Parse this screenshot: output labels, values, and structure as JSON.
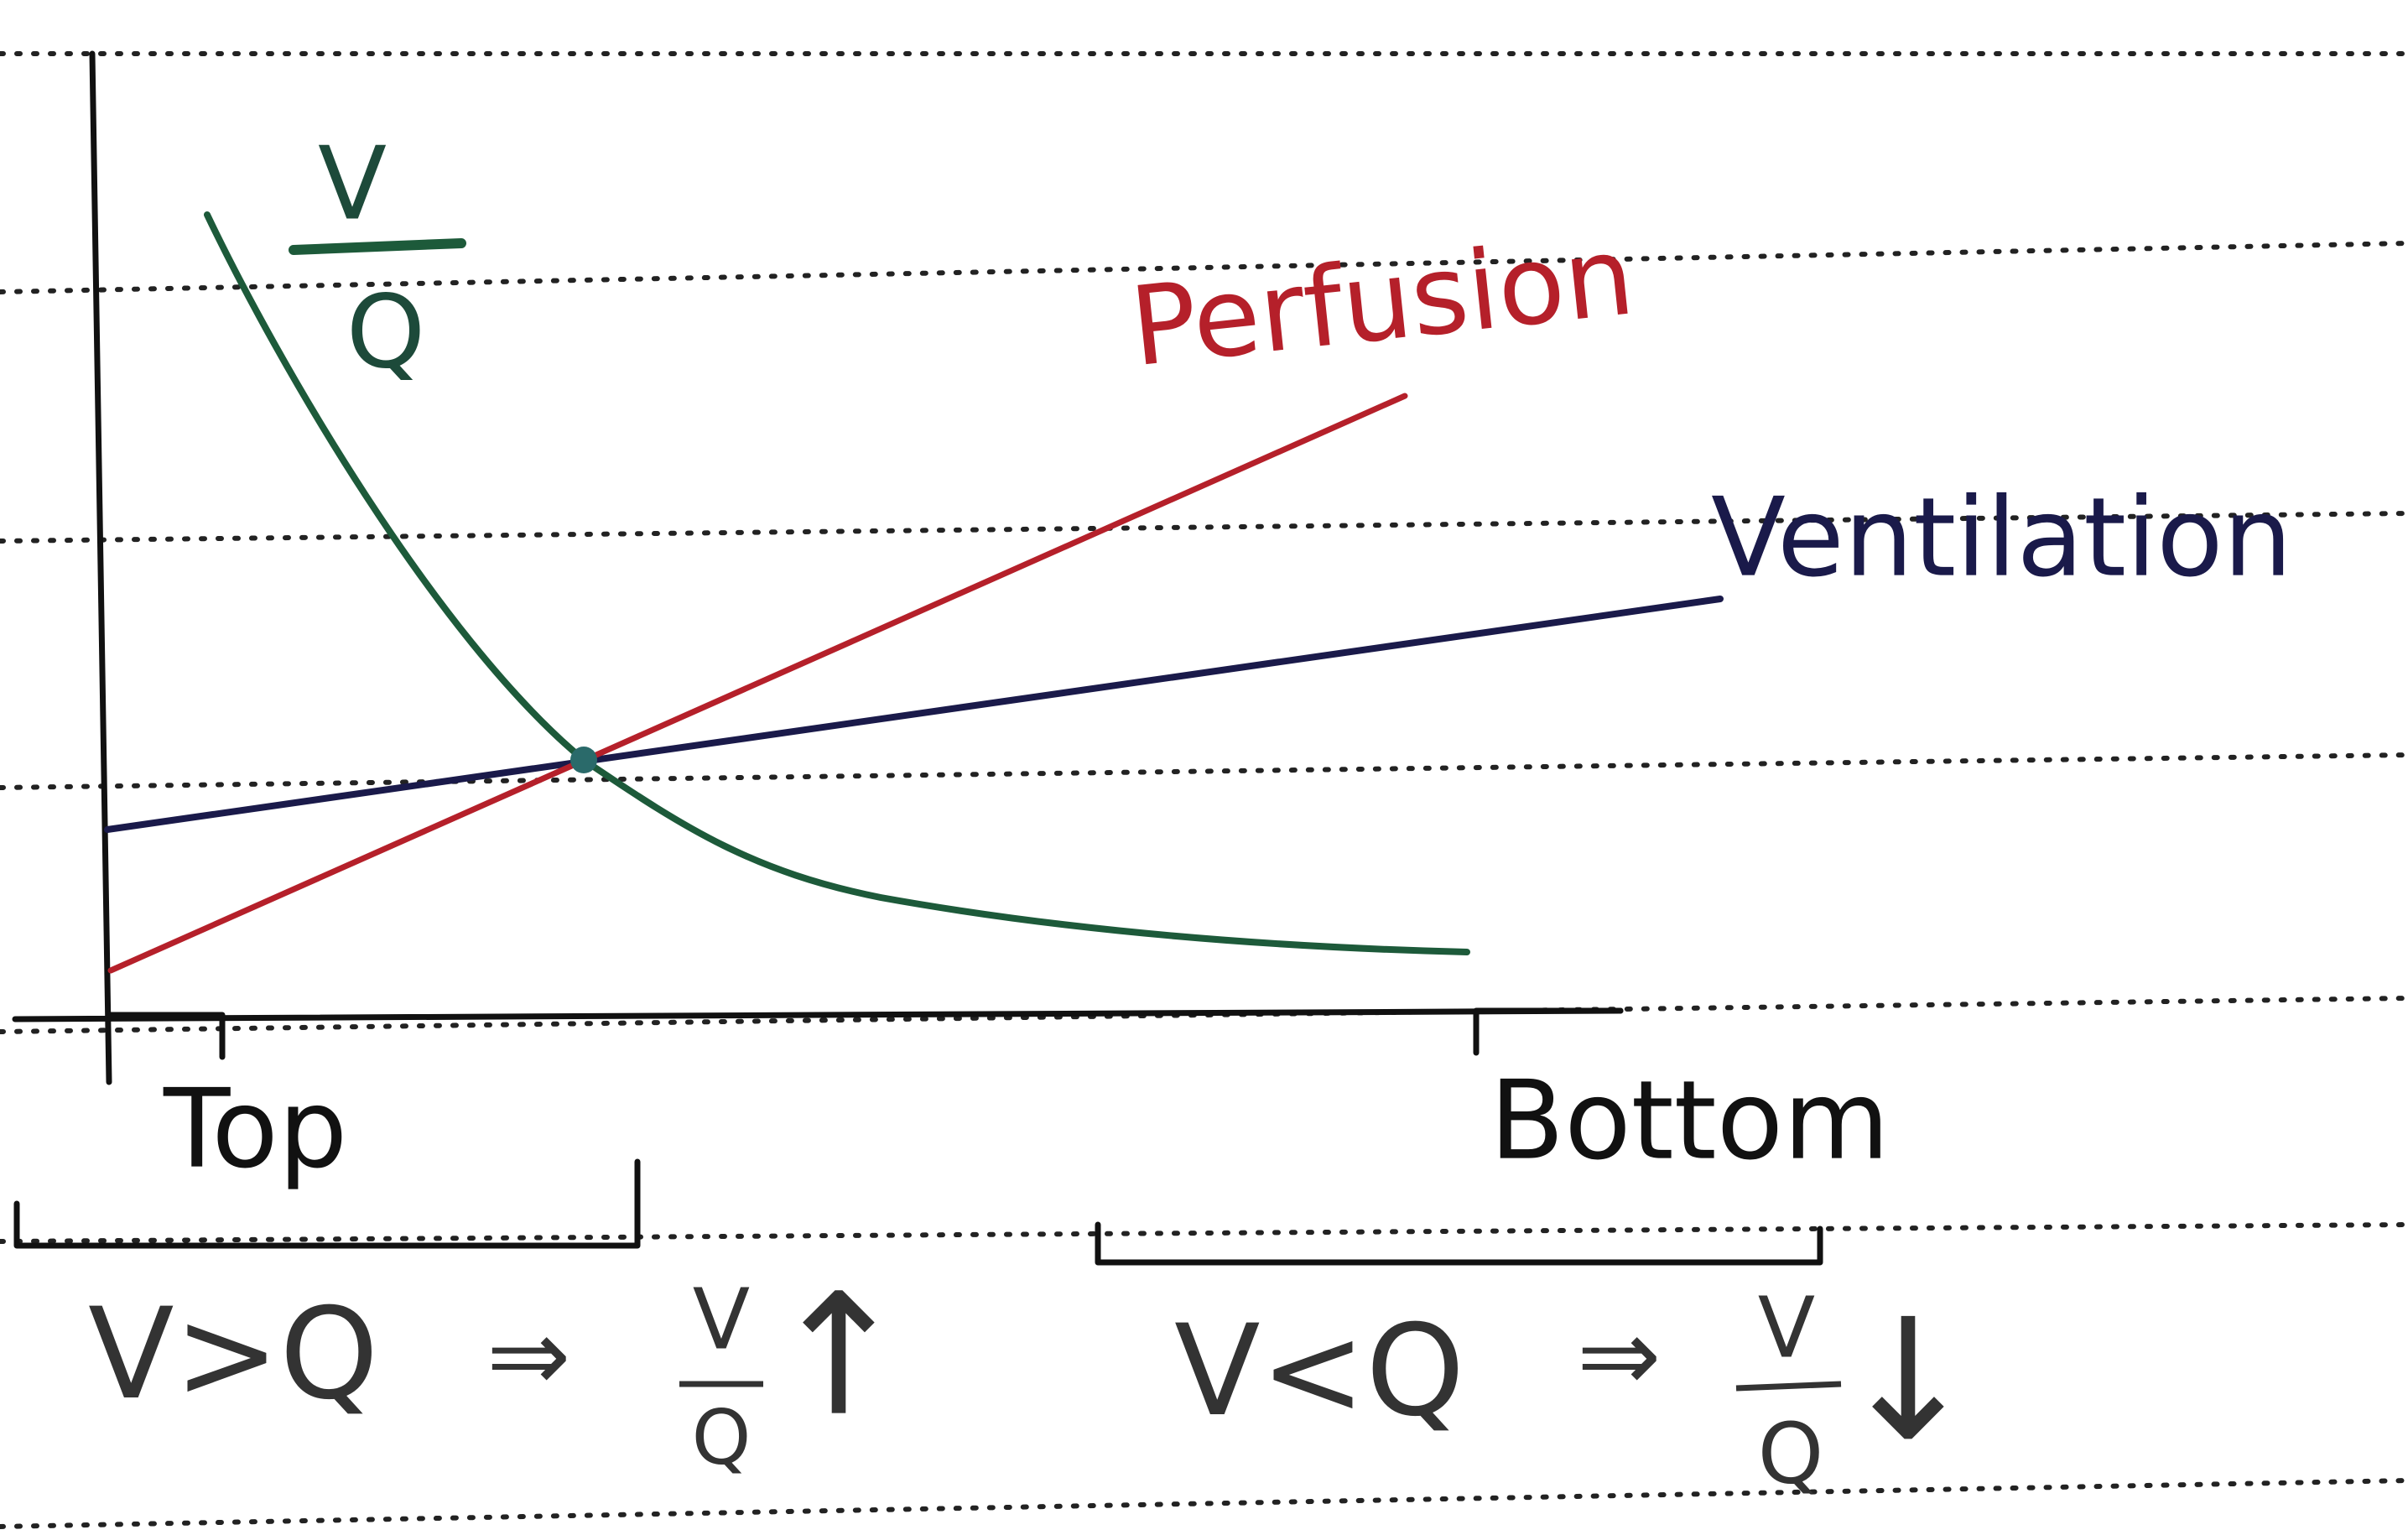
{
  "graph": {
    "curve_label": {
      "numerator": "V",
      "denominator": "Q"
    },
    "perfusion": "Perfusion",
    "ventilation": "Ventilation",
    "top": "Top",
    "bottom": "Bottom"
  },
  "notes": [
    {
      "relation": "V>Q",
      "implies": "⇒",
      "numerator": "V",
      "denominator": "Q",
      "trend": "↑"
    },
    {
      "relation": "V<Q",
      "implies": "⇒",
      "numerator": "V",
      "denominator": "Q",
      "trend": "↓"
    }
  ]
}
